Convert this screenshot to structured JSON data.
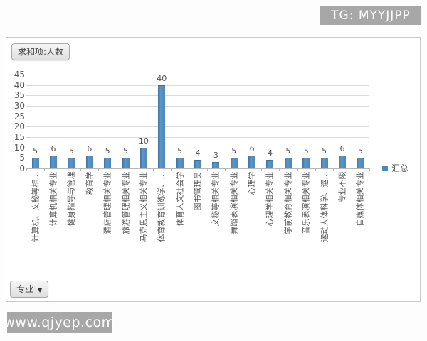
{
  "watermarks": {
    "top": "TG: MYYJJPP",
    "bottom": "www.qjyep.com"
  },
  "pivot": {
    "value_button": "求和项:人数",
    "axis_button": "专业",
    "axis_button_arrow": "▼"
  },
  "legend": {
    "label": "汇总"
  },
  "colors": {
    "bar": "#4e86b7",
    "gridline": "#dadada",
    "axis_line": "#b7b7b7",
    "text": "#595959",
    "watermark_bg": "#a7a7a7"
  },
  "chart_data": {
    "type": "bar",
    "title": "求和项:人数",
    "xlabel": "专业",
    "ylabel": "",
    "categories": [
      "计算机、文秘等相…",
      "计算机相关专业",
      "健身指导与管理",
      "教育学",
      "酒店管理相关专业",
      "旅游管理相关专业",
      "马克思主义相关专业",
      "体育教育训练学、…",
      "体育人文社会学",
      "图书管理员",
      "文秘等相关专业",
      "舞蹈表演相关专业",
      "心理学",
      "心理学相关专业",
      "学前教育相关专业",
      "音乐表演相关专业",
      "运动人体科学、运…",
      "专业不限",
      "自媒体相关专业"
    ],
    "series": [
      {
        "name": "汇总",
        "values": [
          5,
          6,
          5,
          6,
          5,
          5,
          10,
          40,
          5,
          4,
          3,
          5,
          6,
          4,
          5,
          5,
          5,
          6,
          5
        ]
      }
    ],
    "yticks": [
      0,
      5,
      10,
      15,
      20,
      25,
      30,
      35,
      40,
      45
    ],
    "ylim": [
      0,
      45
    ],
    "grid": true,
    "data_labels": true,
    "legend_position": "right"
  }
}
